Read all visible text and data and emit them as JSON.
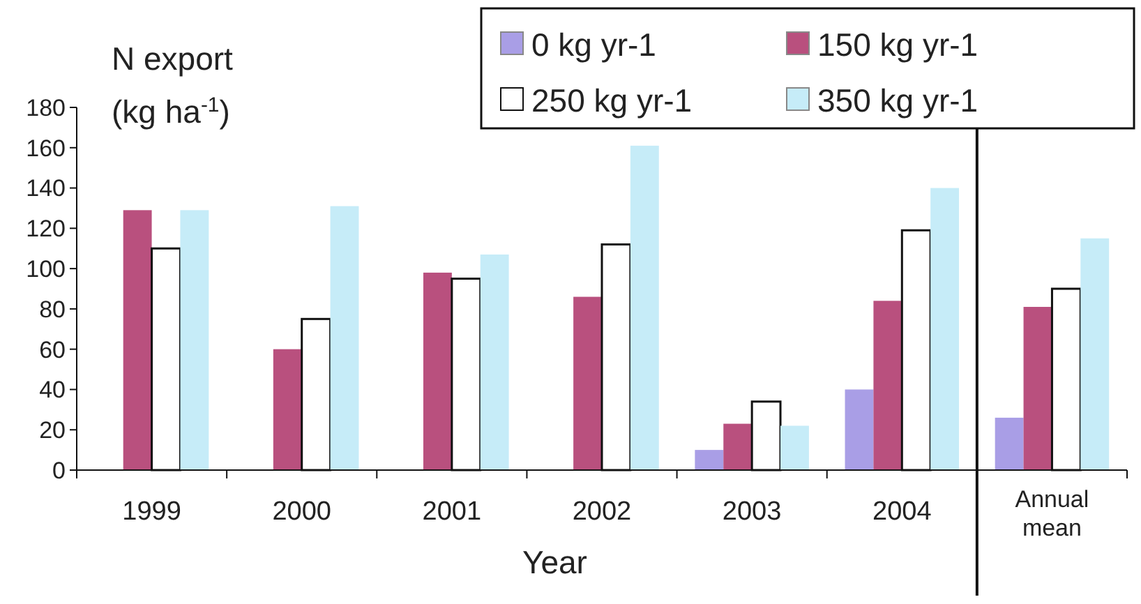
{
  "chart_data": {
    "type": "bar",
    "ylabel": "N export (kg ha$^{-1}$)",
    "xlabel": "Year",
    "categories": [
      "1999",
      "2000",
      "2001",
      "2002",
      "2003",
      "2004",
      "Annual mean"
    ],
    "series": [
      {
        "name": "0 kg yr-1",
        "color": "#a99ee6",
        "values": [
          0,
          0,
          0,
          0,
          10,
          40,
          26
        ]
      },
      {
        "name": "150 kg yr-1",
        "color": "#b9507e",
        "values": [
          129,
          60,
          98,
          86,
          23,
          84,
          81
        ]
      },
      {
        "name": "250 kg yr-1",
        "color": "#ffffff",
        "values": [
          110,
          75,
          95,
          112,
          34,
          119,
          90
        ]
      },
      {
        "name": "350 kg yr-1",
        "color": "#c6ecf8",
        "values": [
          129,
          131,
          107,
          161,
          22,
          140,
          115
        ]
      }
    ],
    "ylim": [
      0,
      180
    ],
    "yticks": [
      0,
      20,
      40,
      60,
      80,
      100,
      120,
      140,
      160,
      180
    ],
    "grid": false,
    "legend": "top right"
  }
}
